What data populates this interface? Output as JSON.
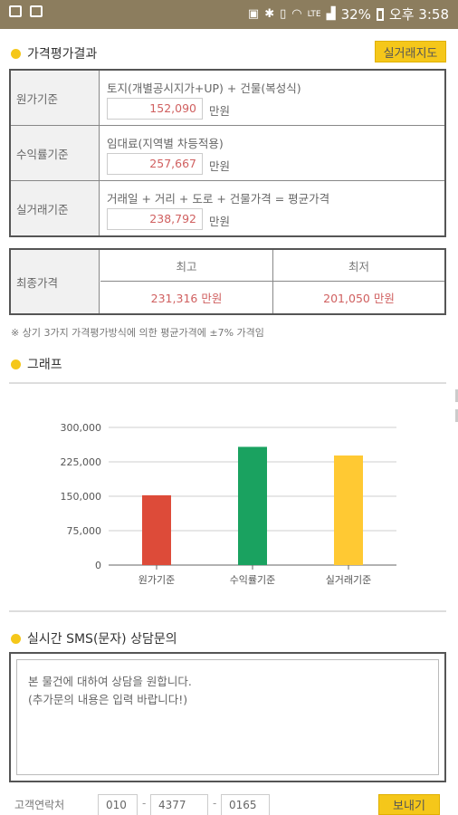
{
  "status_bar": {
    "battery": "32%",
    "time": "오후 3:58",
    "network": "LTE"
  },
  "eval_section": {
    "title": "가격평가결과",
    "map_button": "실거래지도",
    "rows": [
      {
        "label": "원가기준",
        "desc": "토지(개별공시지가+UP) + 건물(복성식)",
        "value": "152,090",
        "unit": "만원"
      },
      {
        "label": "수익률기준",
        "desc": "임대료(지역별 차등적용)",
        "value": "257,667",
        "unit": "만원"
      },
      {
        "label": "실거래기준",
        "desc": "거래일 + 거리 + 도로 + 건물가격 = 평균가격",
        "value": "238,792",
        "unit": "만원"
      }
    ]
  },
  "final_price": {
    "label": "최종가격",
    "high_label": "최고",
    "low_label": "최저",
    "high_value": "231,316 만원",
    "low_value": "201,050 만원"
  },
  "note": "※ 상기 3가지 가격평가방식에 의한 평균가격에 ±7% 가격임",
  "graph_section": {
    "title": "그래프"
  },
  "chart_data": {
    "type": "bar",
    "categories": [
      "원가기준",
      "수익률기준",
      "실거래기준"
    ],
    "values": [
      152090,
      257667,
      238792
    ],
    "colors": [
      "#dd4b39",
      "#1aa260",
      "#ffc933"
    ],
    "ylim": [
      0,
      300000
    ],
    "yticks": [
      "0",
      "75,000",
      "150,000",
      "225,000",
      "300,000"
    ],
    "ytick_values": [
      0,
      75000,
      150000,
      225000,
      300000
    ],
    "grid": true,
    "title": "",
    "xlabel": "",
    "ylabel": ""
  },
  "sms_section": {
    "title": "실시간 SMS(문자) 상담문의",
    "message_line1": "본 물건에 대하여 상담을 원합니다.",
    "message_line2": "(추가문의 내용은 입력 바랍니다!)",
    "contact_label": "고객연락처",
    "phone1": "010",
    "phone2": "4377",
    "phone3": "0165",
    "send_button": "보내기"
  }
}
